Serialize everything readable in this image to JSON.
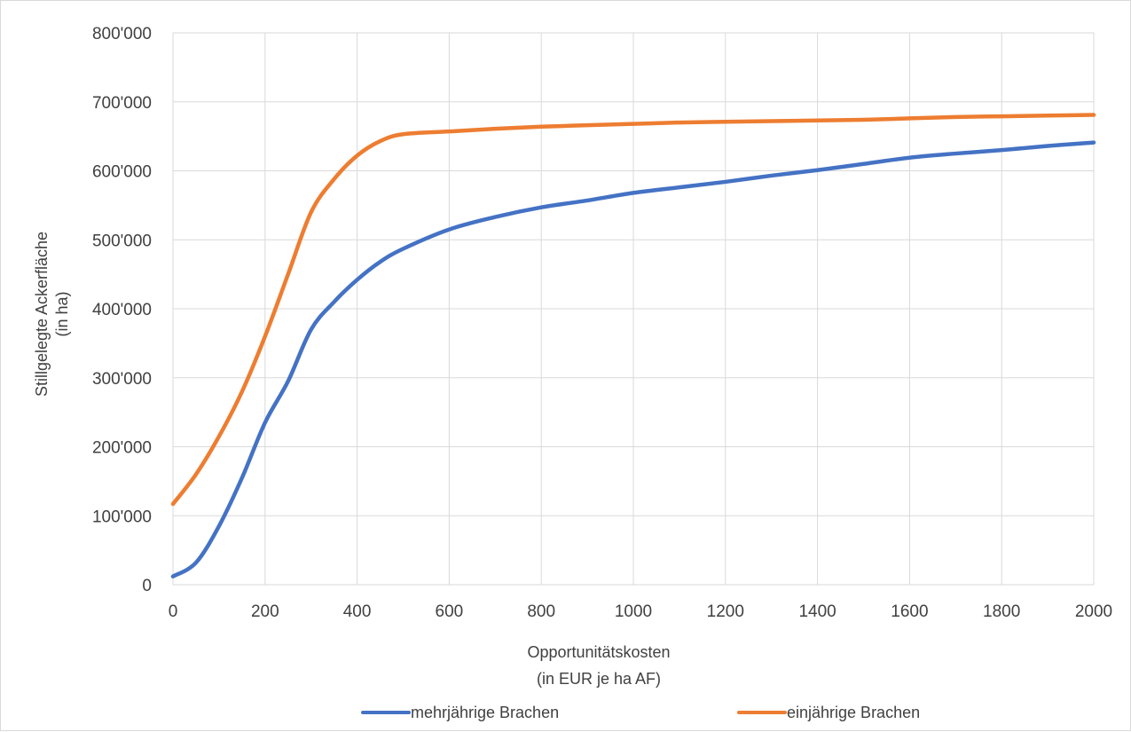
{
  "chart_data": {
    "type": "line",
    "title": "",
    "xlabel": [
      "Opportunitätskosten",
      "(in EUR je ha AF)"
    ],
    "ylabel": [
      "Stillgelegte Ackerfläche",
      "(in ha)"
    ],
    "xlim": [
      0,
      2000
    ],
    "ylim": [
      0,
      800000
    ],
    "x_ticks": [
      0,
      200,
      400,
      600,
      800,
      1000,
      1200,
      1400,
      1600,
      1800,
      2000
    ],
    "x_tick_labels": [
      "0",
      "200",
      "400",
      "600",
      "800",
      "1000",
      "1200",
      "1400",
      "1600",
      "1800",
      "2000"
    ],
    "y_ticks": [
      0,
      100000,
      200000,
      300000,
      400000,
      500000,
      600000,
      700000,
      800000
    ],
    "y_tick_labels": [
      "0",
      "100'000",
      "200'000",
      "300'000",
      "400'000",
      "500'000",
      "600'000",
      "700'000",
      "800'000"
    ],
    "grid": "vertical and horizontal",
    "legend_position": "bottom",
    "series": [
      {
        "name": "mehrjährige Brachen",
        "color": "#4472c4",
        "x": [
          0,
          50,
          100,
          150,
          200,
          250,
          300,
          350,
          400,
          450,
          500,
          600,
          700,
          800,
          900,
          1000,
          1100,
          1200,
          1300,
          1400,
          1500,
          1600,
          1700,
          1800,
          1900,
          2000
        ],
        "y": [
          12000,
          32000,
          85000,
          155000,
          235000,
          295000,
          370000,
          410000,
          442000,
          468000,
          487000,
          515000,
          533000,
          547000,
          557000,
          568000,
          576000,
          584000,
          593000,
          601000,
          610000,
          619000,
          625000,
          630000,
          636000,
          641000
        ]
      },
      {
        "name": "einjährige Brachen",
        "color": "#ed7d31",
        "x": [
          0,
          50,
          100,
          150,
          200,
          250,
          300,
          350,
          400,
          450,
          500,
          600,
          700,
          800,
          900,
          1000,
          1100,
          1200,
          1300,
          1400,
          1500,
          1600,
          1700,
          1800,
          1900,
          2000
        ],
        "y": [
          117000,
          160000,
          215000,
          280000,
          360000,
          450000,
          540000,
          588000,
          622000,
          643000,
          653000,
          657000,
          661000,
          664000,
          666000,
          668000,
          670000,
          671000,
          672000,
          673000,
          674000,
          676000,
          678000,
          679000,
          680000,
          681000
        ]
      }
    ]
  }
}
